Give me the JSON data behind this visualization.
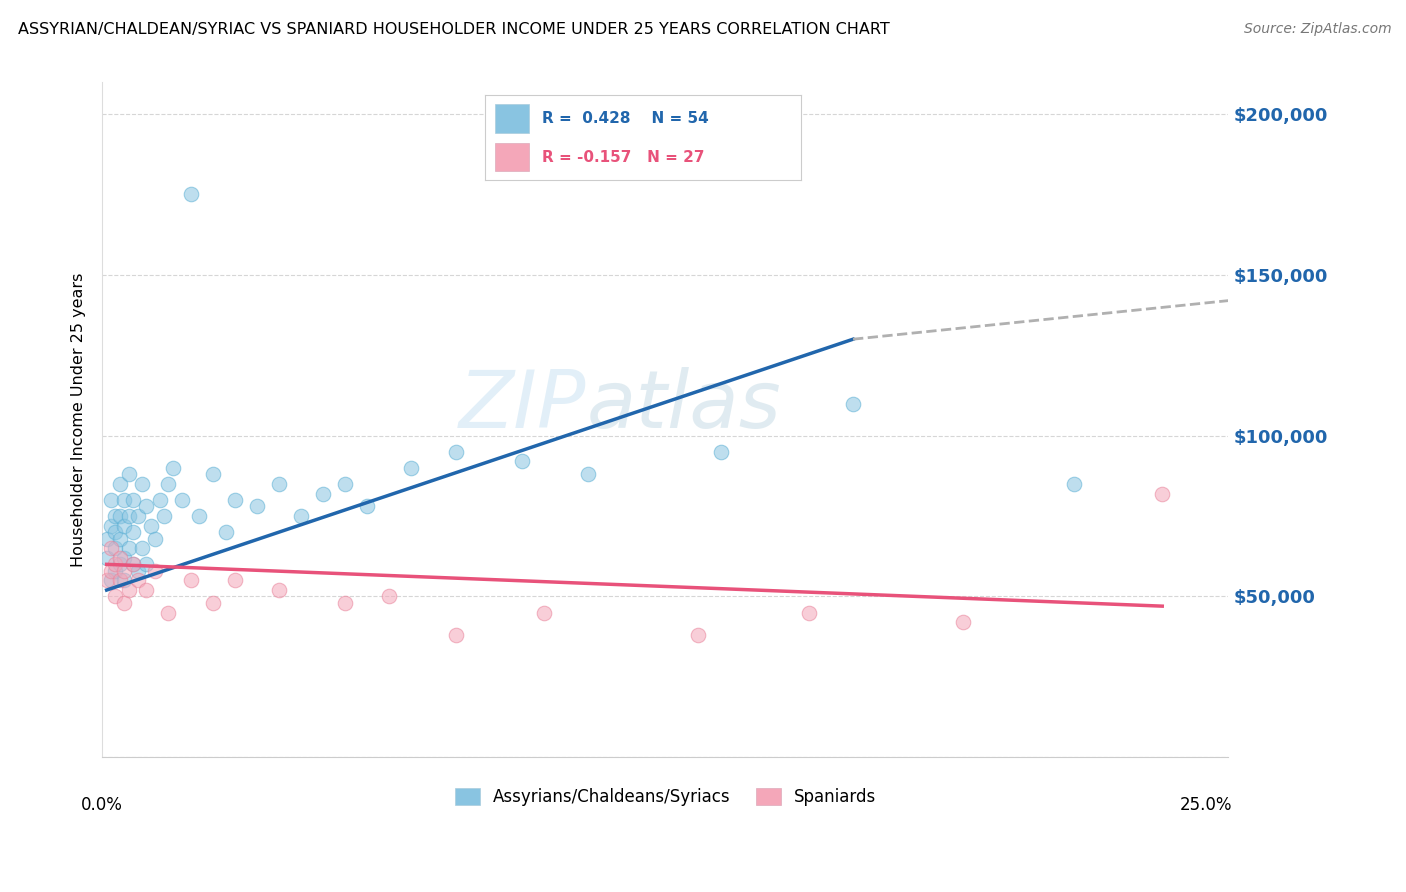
{
  "title": "ASSYRIAN/CHALDEAN/SYRIAC VS SPANIARD HOUSEHOLDER INCOME UNDER 25 YEARS CORRELATION CHART",
  "source": "Source: ZipAtlas.com",
  "ylabel": "Householder Income Under 25 years",
  "legend_label1": "Assyrians/Chaldeans/Syriacs",
  "legend_label2": "Spaniards",
  "R1": 0.428,
  "N1": 54,
  "R2": -0.157,
  "N2": 27,
  "watermark_part1": "ZIP",
  "watermark_part2": "atlas",
  "color_blue": "#89c4e1",
  "color_pink": "#f4a7b9",
  "color_blue_line": "#2166ac",
  "color_pink_line": "#e8527a",
  "color_dashed_line": "#b0b0b0",
  "blue_x": [
    0.001,
    0.001,
    0.002,
    0.002,
    0.002,
    0.003,
    0.003,
    0.003,
    0.003,
    0.004,
    0.004,
    0.004,
    0.004,
    0.005,
    0.005,
    0.005,
    0.005,
    0.006,
    0.006,
    0.006,
    0.007,
    0.007,
    0.007,
    0.008,
    0.008,
    0.009,
    0.009,
    0.01,
    0.01,
    0.011,
    0.012,
    0.013,
    0.014,
    0.015,
    0.016,
    0.018,
    0.02,
    0.022,
    0.025,
    0.028,
    0.03,
    0.035,
    0.04,
    0.045,
    0.05,
    0.055,
    0.06,
    0.07,
    0.08,
    0.095,
    0.11,
    0.14,
    0.17,
    0.22
  ],
  "blue_y": [
    62000,
    68000,
    55000,
    72000,
    80000,
    58000,
    65000,
    70000,
    75000,
    60000,
    68000,
    75000,
    85000,
    55000,
    62000,
    72000,
    80000,
    65000,
    75000,
    88000,
    60000,
    70000,
    80000,
    58000,
    75000,
    65000,
    85000,
    60000,
    78000,
    72000,
    68000,
    80000,
    75000,
    85000,
    90000,
    80000,
    175000,
    75000,
    88000,
    70000,
    80000,
    78000,
    85000,
    75000,
    82000,
    85000,
    78000,
    90000,
    95000,
    92000,
    88000,
    95000,
    110000,
    85000
  ],
  "pink_x": [
    0.001,
    0.002,
    0.002,
    0.003,
    0.003,
    0.004,
    0.004,
    0.005,
    0.005,
    0.006,
    0.007,
    0.008,
    0.01,
    0.012,
    0.015,
    0.02,
    0.025,
    0.03,
    0.04,
    0.055,
    0.065,
    0.08,
    0.1,
    0.135,
    0.16,
    0.195,
    0.24
  ],
  "pink_y": [
    55000,
    58000,
    65000,
    50000,
    60000,
    55000,
    62000,
    48000,
    58000,
    52000,
    60000,
    55000,
    52000,
    58000,
    45000,
    55000,
    48000,
    55000,
    52000,
    48000,
    50000,
    38000,
    45000,
    38000,
    45000,
    42000,
    82000
  ],
  "xlim": [
    0.0,
    0.255
  ],
  "ylim": [
    0,
    210000
  ],
  "ytick_vals": [
    0,
    50000,
    100000,
    150000,
    200000
  ],
  "ytick_labels_right": [
    "",
    "$50,000",
    "$100,000",
    "$150,000",
    "$200,000"
  ],
  "blue_line_x": [
    0.001,
    0.17
  ],
  "blue_line_y": [
    52000,
    130000
  ],
  "dashed_line_x": [
    0.17,
    0.255
  ],
  "dashed_line_y": [
    130000,
    142000
  ],
  "pink_line_x": [
    0.001,
    0.24
  ],
  "pink_line_y": [
    60000,
    47000
  ]
}
